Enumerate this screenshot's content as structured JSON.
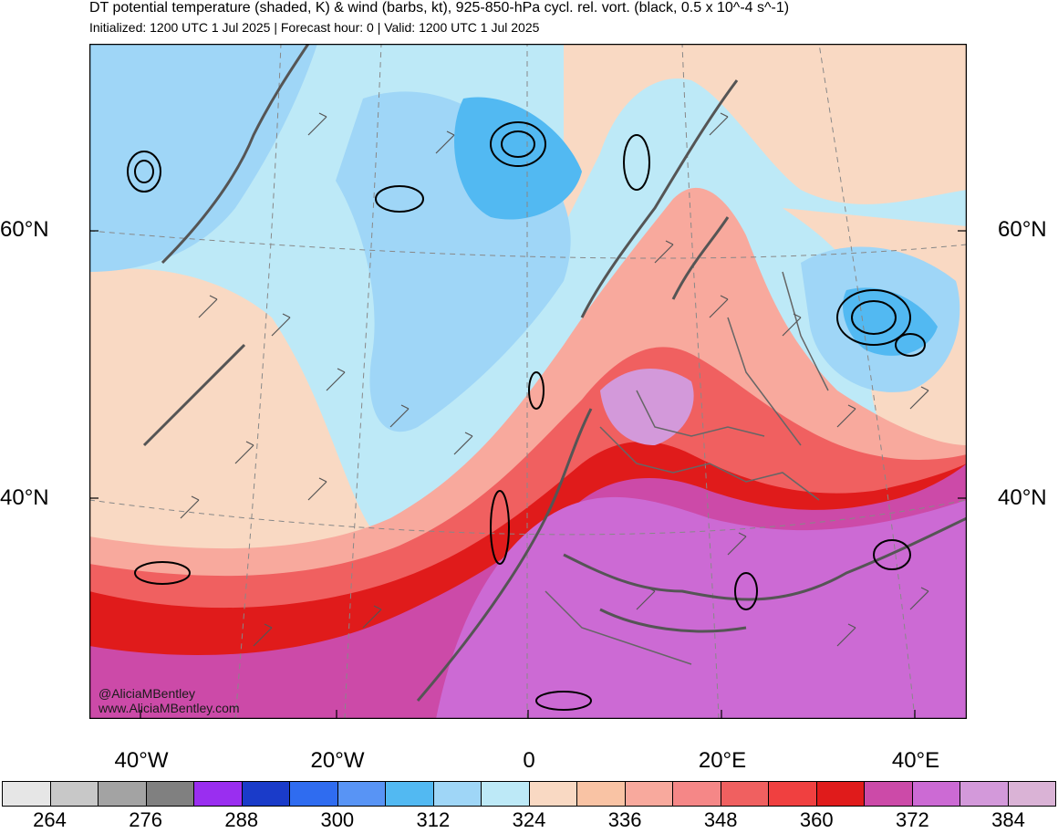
{
  "header": {
    "title": "DT potential temperature (shaded, K) & wind (barbs, kt), 925-850-hPa cycl. rel. vort. (black, 0.5 x 10^-4 s^-1)",
    "subtitle": "Initialized: 1200 UTC 1 Jul 2025 | Forecast hour: 0 | Valid: 1200 UTC 1 Jul 2025"
  },
  "credits": {
    "handle": "@AliciaMBentley",
    "website": "www.AliciaMBentley.com"
  },
  "axes": {
    "lat_labels": [
      "60°N",
      "40°N"
    ],
    "lon_labels": [
      "40°W",
      "20°W",
      "0",
      "20°E",
      "40°E"
    ]
  },
  "colorbar": {
    "colors": [
      "#e6e6e6",
      "#c8c8c8",
      "#a3a3a3",
      "#808080",
      "#9a2ef0",
      "#1a3bc9",
      "#2f6cf0",
      "#5894f5",
      "#52b9f2",
      "#9fd6f7",
      "#bde9f7",
      "#f9d9c3",
      "#f9c3a4",
      "#f8a99d",
      "#f58787",
      "#f06060",
      "#f04040",
      "#e01b1b",
      "#cc4aa8",
      "#cc6ad4",
      "#d399da",
      "#dab3d6"
    ],
    "labels": [
      "264",
      "276",
      "288",
      "300",
      "312",
      "324",
      "336",
      "348",
      "360",
      "372",
      "384"
    ]
  },
  "map": {
    "colors": {
      "deep_blue": "#52b9f2",
      "mid_blue": "#9fd6f7",
      "light_blue": "#bde9f7",
      "peach": "#f9d9c3",
      "salmon": "#f9c3a4",
      "pink": "#f8a99d",
      "red": "#f06060",
      "dark_red": "#e01b1b",
      "magenta": "#cc4aa8",
      "violet": "#cc6ad4",
      "lavender": "#d399da",
      "coast": "#555555",
      "contour": "#000000"
    }
  }
}
